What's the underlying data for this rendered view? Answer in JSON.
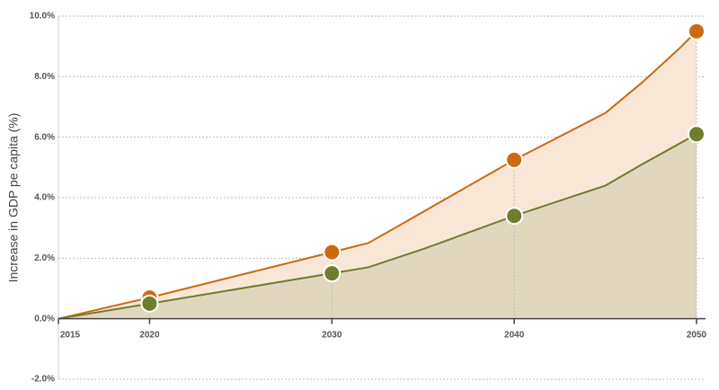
{
  "chart_data": {
    "type": "area-line",
    "y_label": "Increase in GDP pe capita (%)",
    "xlim": [
      2015,
      2050
    ],
    "xticks": [
      2015,
      2020,
      2030,
      2040,
      2050
    ],
    "ylim": [
      -2,
      10
    ],
    "yticks": [
      {
        "value": -2,
        "label": "-2.0%"
      },
      {
        "value": 0,
        "label": "0.0%"
      },
      {
        "value": 2,
        "label": "2.0%"
      },
      {
        "value": 4,
        "label": "4.0%"
      },
      {
        "value": 6,
        "label": "6.0%"
      },
      {
        "value": 8,
        "label": "8.0%"
      },
      {
        "value": 10,
        "label": "10.0%"
      }
    ],
    "grid": true,
    "series": [
      {
        "color": "#cc6a12",
        "fill": "#f8e7d7",
        "x": [
          2015,
          2020,
          2030,
          2032,
          2040,
          2045,
          2047,
          2049,
          2050
        ],
        "values": [
          0,
          0.7,
          2.2,
          2.5,
          5.25,
          6.8,
          7.8,
          8.9,
          9.5
        ]
      },
      {
        "color": "#6f7d2e",
        "fill": "#e1d7bf",
        "x": [
          2015,
          2020,
          2030,
          2032,
          2035,
          2040,
          2045,
          2047,
          2050
        ],
        "values": [
          0,
          0.5,
          1.5,
          1.7,
          2.3,
          3.4,
          4.4,
          5.1,
          6.1
        ]
      }
    ]
  }
}
